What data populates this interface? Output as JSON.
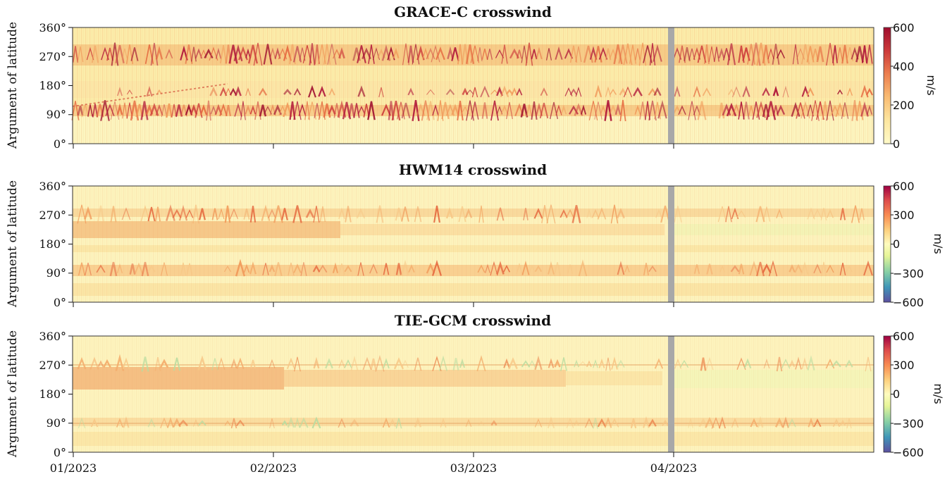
{
  "chart_data": [
    {
      "type": "heatmap",
      "title": "GRACE-C crosswind",
      "ylabel": "Argument of latitude",
      "yticks": [
        "0°",
        "90°",
        "180°",
        "270°",
        "360°"
      ],
      "ylim": [
        0,
        360
      ],
      "xticks": [
        "01/2023",
        "02/2023",
        "03/2023",
        "04/2023"
      ],
      "xtick_labels_shown": false,
      "colorbar": {
        "label": "m/s",
        "range": [
          0,
          600
        ],
        "ticks": [
          "0",
          "200",
          "400",
          "600"
        ],
        "colormap": "yellow-orange-red (sequential)"
      },
      "bands": [
        {
          "arg_lat_center": 270,
          "speed": "high, up to ~600 m/s"
        },
        {
          "arg_lat_center": 90,
          "speed": "high, up to ~600 m/s"
        },
        {
          "arg_lat_center": 170,
          "speed": "moderate"
        }
      ],
      "data_gap": "around 04/2023"
    },
    {
      "type": "heatmap",
      "title": "HWM14 crosswind",
      "ylabel": "Argument of latitude",
      "yticks": [
        "0°",
        "90°",
        "180°",
        "270°",
        "360°"
      ],
      "ylim": [
        0,
        360
      ],
      "xticks": [
        "01/2023",
        "02/2023",
        "03/2023",
        "04/2023"
      ],
      "xtick_labels_shown": false,
      "colorbar": {
        "label": "m/s",
        "range": [
          -600,
          600
        ],
        "ticks": [
          "−600",
          "−300",
          "0",
          "300",
          "600"
        ],
        "colormap": "Spectral (diverging)"
      },
      "data_gap": "around 04/2023"
    },
    {
      "type": "heatmap",
      "title": "TIE-GCM crosswind",
      "ylabel": "Argument of latitude",
      "yticks": [
        "0°",
        "90°",
        "180°",
        "270°",
        "360°"
      ],
      "ylim": [
        0,
        360
      ],
      "xticks": [
        "01/2023",
        "02/2023",
        "03/2023",
        "04/2023"
      ],
      "xtick_labels_shown": true,
      "colorbar": {
        "label": "m/s",
        "range": [
          -600,
          600
        ],
        "ticks": [
          "−600",
          "−300",
          "0",
          "300",
          "600"
        ],
        "colormap": "Spectral (diverging)"
      },
      "data_gap": "around 04/2023"
    }
  ],
  "colors": {
    "grace": [
      "#fff8c8",
      "#fde6a0",
      "#f9bc73",
      "#ec7f4f",
      "#cc3a3a",
      "#9e0d2e"
    ],
    "spectral": [
      "#5c4fa0",
      "#3f96b8",
      "#86cfa5",
      "#e6f598",
      "#fefbbe",
      "#fdd17f",
      "#f88b52",
      "#dc4a4c",
      "#9e0142"
    ],
    "gap": "#a8a8a8"
  }
}
